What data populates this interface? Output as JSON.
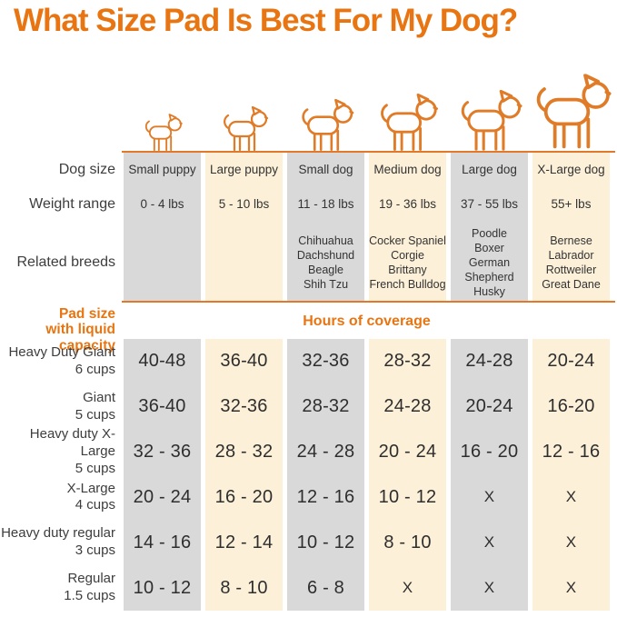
{
  "title": "What Size Pad Is Best For My Dog?",
  "colors": {
    "accent": "#e87511",
    "line": "#e2782a",
    "dog_outline": "#e07b28",
    "column_gray": "#d9d9d9",
    "column_cream": "#fdf0d8",
    "text_dark": "#333333"
  },
  "upper_labels": {
    "dog_size": "Dog size",
    "weight_range": "Weight range",
    "related_breeds": "Related breeds"
  },
  "pad_section": {
    "label_line1": "Pad size",
    "label_line2": "with liquid capacity",
    "hours_header": "Hours of coverage"
  },
  "columns": [
    {
      "name": "Small puppy",
      "weight": "0 - 4 lbs",
      "breeds": []
    },
    {
      "name": "Large puppy",
      "weight": "5 - 10 lbs",
      "breeds": []
    },
    {
      "name": "Small dog",
      "weight": "11 - 18 lbs",
      "breeds": [
        "Chihuahua",
        "Dachshund",
        "Beagle",
        "Shih Tzu"
      ]
    },
    {
      "name": "Medium dog",
      "weight": "19 - 36 lbs",
      "breeds": [
        "Cocker Spaniel",
        "Corgie",
        "Brittany",
        "French Bulldog"
      ]
    },
    {
      "name": "Large dog",
      "weight": "37 - 55 lbs",
      "breeds": [
        "Poodle",
        "Boxer",
        "German Shepherd",
        "Husky"
      ]
    },
    {
      "name": "X-Large dog",
      "weight": "55+ lbs",
      "breeds": [
        "Bernese",
        "Labrador",
        "Rottweiler",
        "Great Dane"
      ]
    }
  ],
  "pad_rows": [
    {
      "label": "Heavy Duty Giant",
      "capacity": "6 cups",
      "values": [
        "40-48",
        "36-40",
        "32-36",
        "28-32",
        "24-28",
        "20-24"
      ]
    },
    {
      "label": "Giant",
      "capacity": "5 cups",
      "values": [
        "36-40",
        "32-36",
        "28-32",
        "24-28",
        "20-24",
        "16-20"
      ]
    },
    {
      "label": "Heavy duty X-Large",
      "capacity": "5 cups",
      "values": [
        "32 - 36",
        "28 - 32",
        "24 - 28",
        "20 - 24",
        "16 - 20",
        "12 - 16"
      ]
    },
    {
      "label": "X-Large",
      "capacity": "4 cups",
      "values": [
        "20 - 24",
        "16 - 20",
        "12 - 16",
        "10 - 12",
        "X",
        "X"
      ]
    },
    {
      "label": "Heavy duty regular",
      "capacity": "3 cups",
      "values": [
        "14 - 16",
        "12 - 14",
        "10 - 12",
        "8 - 10",
        "X",
        "X"
      ]
    },
    {
      "label": "Regular",
      "capacity": "1.5 cups",
      "values": [
        "10 - 12",
        "8 - 10",
        "6 - 8",
        "X",
        "X",
        "X"
      ]
    }
  ],
  "chart_data": {
    "type": "table",
    "title": "What Size Pad Is Best For My Dog?",
    "section_header": "Hours of coverage",
    "columns": [
      "Small puppy",
      "Large puppy",
      "Small dog",
      "Medium dog",
      "Large dog",
      "X-Large dog"
    ],
    "rows": [
      {
        "label": "Dog size",
        "values": [
          "Small puppy",
          "Large puppy",
          "Small dog",
          "Medium dog",
          "Large dog",
          "X-Large dog"
        ]
      },
      {
        "label": "Weight range",
        "values": [
          "0 - 4 lbs",
          "5 - 10 lbs",
          "11 - 18 lbs",
          "19 - 36 lbs",
          "37 - 55 lbs",
          "55+ lbs"
        ]
      },
      {
        "label": "Related breeds",
        "values": [
          "",
          "",
          "Chihuahua, Dachshund, Beagle, Shih Tzu",
          "Cocker Spaniel, Corgie, Brittany, French Bulldog",
          "Poodle, Boxer, German Shepherd, Husky",
          "Bernese, Labrador, Rottweiler, Great Dane"
        ]
      },
      {
        "label": "Heavy Duty Giant 6 cups",
        "values": [
          "40-48",
          "36-40",
          "32-36",
          "28-32",
          "24-28",
          "20-24"
        ]
      },
      {
        "label": "Giant 5 cups",
        "values": [
          "36-40",
          "32-36",
          "28-32",
          "24-28",
          "20-24",
          "16-20"
        ]
      },
      {
        "label": "Heavy duty X-Large 5 cups",
        "values": [
          "32 - 36",
          "28 - 32",
          "24 - 28",
          "20 - 24",
          "16 - 20",
          "12 - 16"
        ]
      },
      {
        "label": "X-Large 4 cups",
        "values": [
          "20 - 24",
          "16 - 20",
          "12 - 16",
          "10 - 12",
          "X",
          "X"
        ]
      },
      {
        "label": "Heavy duty regular 3 cups",
        "values": [
          "14 - 16",
          "12 - 14",
          "10 - 12",
          "8 - 10",
          "X",
          "X"
        ]
      },
      {
        "label": "Regular 1.5 cups",
        "values": [
          "10 - 12",
          "8 - 10",
          "6 - 8",
          "X",
          "X",
          "X"
        ]
      }
    ]
  }
}
